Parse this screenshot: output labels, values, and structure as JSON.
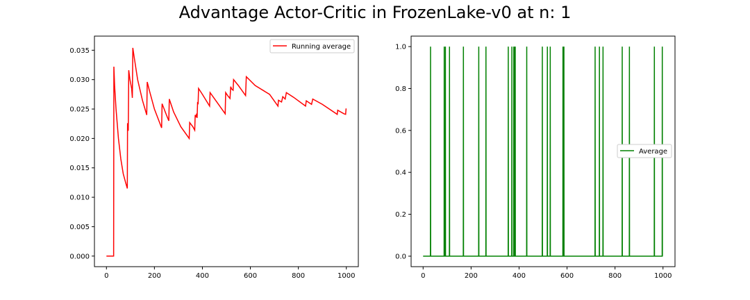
{
  "title": "Advantage Actor-Critic in FrozenLake-v0 at n: 1",
  "chart_data": [
    {
      "type": "line",
      "series": [
        {
          "name": "Running average",
          "color": "#ff0000"
        }
      ],
      "x_ticks": [
        "0",
        "200",
        "400",
        "600",
        "800",
        "1000"
      ],
      "y_ticks": [
        "0.000",
        "0.005",
        "0.010",
        "0.015",
        "0.020",
        "0.025",
        "0.030",
        "0.035"
      ],
      "xlim": [
        -50,
        1050
      ],
      "ylim": [
        -0.0018,
        0.0374
      ],
      "legend": "top-right",
      "points": [
        [
          0,
          0
        ],
        [
          30,
          0
        ],
        [
          31,
          0.0322
        ],
        [
          34,
          0.029
        ],
        [
          40,
          0.025
        ],
        [
          50,
          0.02
        ],
        [
          60,
          0.0165
        ],
        [
          70,
          0.014
        ],
        [
          80,
          0.0125
        ],
        [
          87,
          0.0115
        ],
        [
          88,
          0.0226
        ],
        [
          91,
          0.0213
        ],
        [
          93,
          0.0316
        ],
        [
          98,
          0.03
        ],
        [
          105,
          0.0285
        ],
        [
          108,
          0.0269
        ],
        [
          110,
          0.0354
        ],
        [
          115,
          0.034
        ],
        [
          130,
          0.03
        ],
        [
          150,
          0.0265
        ],
        [
          168,
          0.024
        ],
        [
          170,
          0.0296
        ],
        [
          180,
          0.028
        ],
        [
          200,
          0.025
        ],
        [
          230,
          0.0218
        ],
        [
          232,
          0.0259
        ],
        [
          250,
          0.024
        ],
        [
          260,
          0.023
        ],
        [
          262,
          0.0267
        ],
        [
          280,
          0.0245
        ],
        [
          310,
          0.022
        ],
        [
          345,
          0.02
        ],
        [
          347,
          0.0227
        ],
        [
          360,
          0.022
        ],
        [
          368,
          0.0214
        ],
        [
          370,
          0.024
        ],
        [
          372,
          0.0236
        ],
        [
          375,
          0.024
        ],
        [
          378,
          0.0235
        ],
        [
          380,
          0.0262
        ],
        [
          382,
          0.0258
        ],
        [
          384,
          0.0285
        ],
        [
          400,
          0.0275
        ],
        [
          430,
          0.0255
        ],
        [
          432,
          0.0278
        ],
        [
          460,
          0.0262
        ],
        [
          495,
          0.0242
        ],
        [
          497,
          0.0278
        ],
        [
          505,
          0.0273
        ],
        [
          515,
          0.0268
        ],
        [
          518,
          0.0288
        ],
        [
          522,
          0.0284
        ],
        [
          528,
          0.0282
        ],
        [
          530,
          0.03
        ],
        [
          550,
          0.029
        ],
        [
          580,
          0.0273
        ],
        [
          583,
          0.0305
        ],
        [
          620,
          0.029
        ],
        [
          680,
          0.0275
        ],
        [
          715,
          0.0255
        ],
        [
          717,
          0.0265
        ],
        [
          730,
          0.0262
        ],
        [
          735,
          0.0271
        ],
        [
          745,
          0.0267
        ],
        [
          750,
          0.0278
        ],
        [
          780,
          0.027
        ],
        [
          830,
          0.0255
        ],
        [
          833,
          0.0264
        ],
        [
          855,
          0.0258
        ],
        [
          860,
          0.0267
        ],
        [
          900,
          0.0258
        ],
        [
          962,
          0.0241
        ],
        [
          964,
          0.0248
        ],
        [
          990,
          0.0242
        ],
        [
          997,
          0.0241
        ],
        [
          999,
          0.0251
        ]
      ]
    },
    {
      "type": "line",
      "series": [
        {
          "name": "Average",
          "color": "#008000"
        }
      ],
      "x_ticks": [
        "0",
        "200",
        "400",
        "600",
        "800",
        "1000"
      ],
      "y_ticks": [
        "0.0",
        "0.2",
        "0.4",
        "0.6",
        "0.8",
        "1.0"
      ],
      "xlim": [
        -50,
        1050
      ],
      "ylim": [
        -0.05,
        1.05
      ],
      "legend": "center-right",
      "spike_x": [
        31,
        88,
        93,
        110,
        168,
        232,
        262,
        355,
        370,
        378,
        382,
        384,
        432,
        497,
        518,
        530,
        583,
        587,
        717,
        735,
        750,
        830,
        860,
        964,
        997
      ]
    }
  ]
}
